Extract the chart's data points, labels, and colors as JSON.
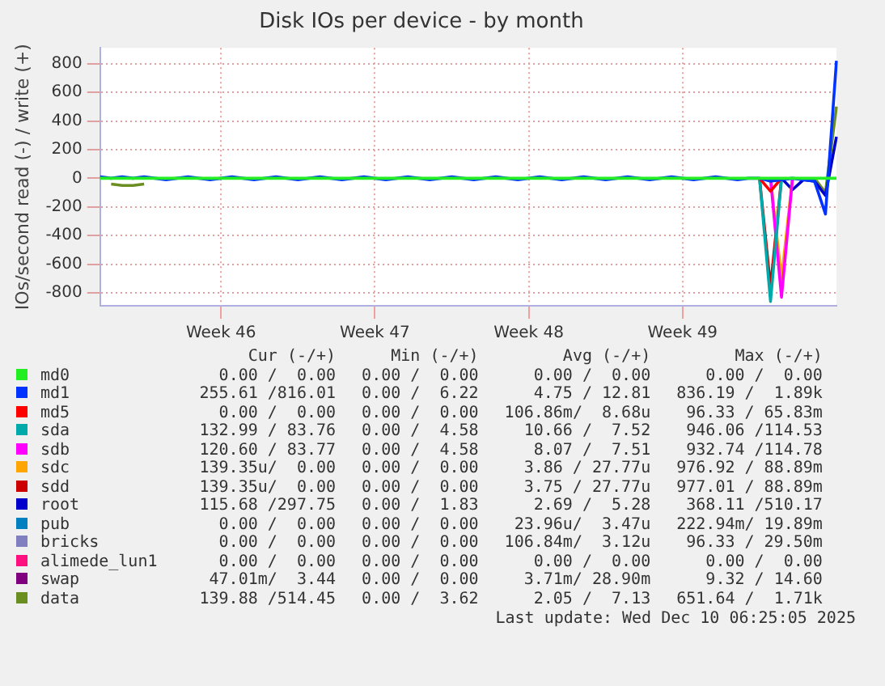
{
  "chart_data": {
    "type": "line",
    "title": "Disk IOs per device - by month",
    "ylabel": "IOs/second read (-) / write (+)",
    "categories": [
      null,
      null,
      null,
      null,
      null,
      null,
      null,
      null,
      null,
      null,
      null,
      "Week 46",
      null,
      null,
      null,
      null,
      null,
      null,
      null,
      null,
      null,
      null,
      null,
      null,
      null,
      "Week 47",
      null,
      null,
      null,
      null,
      null,
      null,
      null,
      null,
      null,
      null,
      null,
      null,
      null,
      "Week 48",
      null,
      null,
      null,
      null,
      null,
      null,
      null,
      null,
      null,
      null,
      null,
      null,
      null,
      "Week 49",
      null,
      null,
      null,
      null,
      null,
      null,
      null,
      null,
      null,
      null,
      null,
      null,
      null,
      null
    ],
    "ylim": [
      -890,
      910
    ],
    "yticks": [
      -800,
      -600,
      -400,
      -200,
      0,
      200,
      400,
      600,
      800
    ],
    "grid": true,
    "legend": "bottom",
    "marker": "none",
    "line_style": "solid",
    "series": [
      {
        "name": "md0",
        "color": "#22ee22",
        "values": [
          0,
          0,
          0,
          0,
          0,
          0,
          0,
          0,
          0,
          0,
          0,
          0,
          0,
          0,
          0,
          0,
          0,
          0,
          0,
          0,
          0,
          0,
          0,
          0,
          0,
          0,
          0,
          0,
          0,
          0,
          0,
          0,
          0,
          0,
          0,
          0,
          0,
          0,
          0,
          0,
          0,
          0,
          0,
          0,
          0,
          0,
          0,
          0,
          0,
          0,
          0,
          0,
          0,
          0,
          0,
          0,
          0,
          0,
          0,
          0,
          0,
          0,
          0,
          0,
          0,
          0,
          0,
          0
        ]
      },
      {
        "name": "md1",
        "color": "#0033ff",
        "values": [
          10,
          0,
          10,
          0,
          10,
          0,
          -10,
          0,
          10,
          0,
          -10,
          0,
          10,
          0,
          -10,
          0,
          10,
          0,
          -10,
          0,
          10,
          0,
          -10,
          0,
          10,
          0,
          -10,
          0,
          10,
          0,
          -10,
          0,
          10,
          0,
          -10,
          0,
          10,
          0,
          -10,
          0,
          10,
          0,
          -10,
          0,
          10,
          0,
          -10,
          0,
          10,
          0,
          -10,
          0,
          10,
          0,
          -10,
          0,
          10,
          0,
          -10,
          0,
          0,
          -20,
          -10,
          0,
          -10,
          -20,
          -250,
          820
        ]
      },
      {
        "name": "md5",
        "color": "#ff0000",
        "values": [
          null,
          null,
          null,
          null,
          null,
          null,
          null,
          null,
          null,
          null,
          null,
          null,
          null,
          null,
          null,
          null,
          null,
          null,
          null,
          null,
          null,
          null,
          null,
          null,
          null,
          null,
          null,
          null,
          null,
          null,
          null,
          null,
          null,
          null,
          null,
          null,
          null,
          null,
          null,
          null,
          null,
          null,
          null,
          null,
          null,
          null,
          null,
          null,
          null,
          null,
          null,
          null,
          null,
          null,
          null,
          null,
          null,
          null,
          null,
          null,
          0,
          -90,
          0,
          null,
          null,
          null,
          null,
          null
        ]
      },
      {
        "name": "sda",
        "color": "#00aaaa",
        "values": [
          null,
          null,
          null,
          null,
          null,
          null,
          null,
          null,
          null,
          null,
          null,
          null,
          null,
          null,
          null,
          null,
          null,
          null,
          null,
          null,
          null,
          null,
          null,
          null,
          null,
          null,
          null,
          null,
          null,
          null,
          null,
          null,
          null,
          null,
          null,
          null,
          null,
          null,
          null,
          null,
          null,
          null,
          null,
          null,
          null,
          null,
          null,
          null,
          null,
          null,
          null,
          null,
          null,
          null,
          null,
          null,
          null,
          null,
          null,
          null,
          0,
          -860,
          0,
          null,
          null,
          null,
          null,
          null
        ]
      },
      {
        "name": "sdb",
        "color": "#ff00ff",
        "values": [
          null,
          null,
          null,
          null,
          null,
          null,
          null,
          null,
          null,
          null,
          null,
          null,
          null,
          null,
          null,
          null,
          null,
          null,
          null,
          null,
          null,
          null,
          null,
          null,
          null,
          null,
          null,
          null,
          null,
          null,
          null,
          null,
          null,
          null,
          null,
          null,
          null,
          null,
          null,
          null,
          null,
          null,
          null,
          null,
          null,
          null,
          null,
          null,
          null,
          null,
          null,
          null,
          null,
          null,
          null,
          null,
          null,
          null,
          null,
          null,
          null,
          0,
          -830,
          0,
          null,
          null,
          null,
          null
        ]
      },
      {
        "name": "sdc",
        "color": "#ffa500",
        "values": [
          null,
          null,
          null,
          null,
          null,
          null,
          null,
          null,
          null,
          null,
          null,
          null,
          null,
          null,
          null,
          null,
          null,
          null,
          null,
          null,
          null,
          null,
          null,
          null,
          null,
          null,
          null,
          null,
          null,
          null,
          null,
          null,
          null,
          null,
          null,
          null,
          null,
          null,
          null,
          null,
          null,
          null,
          null,
          null,
          null,
          null,
          null,
          null,
          null,
          null,
          null,
          null,
          null,
          null,
          null,
          null,
          null,
          null,
          null,
          null,
          null,
          0,
          -700,
          0,
          null,
          null,
          null,
          null
        ]
      },
      {
        "name": "sdd",
        "color": "#cc0000",
        "values": [
          null,
          null,
          null,
          null,
          null,
          null,
          null,
          null,
          null,
          null,
          null,
          null,
          null,
          null,
          null,
          null,
          null,
          null,
          null,
          null,
          null,
          null,
          null,
          null,
          null,
          null,
          null,
          null,
          null,
          null,
          null,
          null,
          null,
          null,
          null,
          null,
          null,
          null,
          null,
          null,
          null,
          null,
          null,
          null,
          null,
          null,
          null,
          null,
          null,
          null,
          null,
          null,
          null,
          null,
          null,
          null,
          null,
          null,
          null,
          null,
          0,
          -760,
          0,
          null,
          null,
          null,
          null,
          null
        ]
      },
      {
        "name": "root",
        "color": "#0000cc",
        "values": [
          null,
          null,
          null,
          null,
          null,
          null,
          null,
          null,
          null,
          null,
          null,
          null,
          null,
          null,
          null,
          null,
          null,
          null,
          null,
          null,
          null,
          null,
          null,
          null,
          null,
          null,
          null,
          null,
          null,
          null,
          null,
          null,
          null,
          null,
          null,
          null,
          null,
          null,
          null,
          null,
          null,
          null,
          null,
          null,
          null,
          null,
          null,
          null,
          null,
          null,
          null,
          null,
          null,
          null,
          null,
          null,
          null,
          null,
          null,
          null,
          null,
          null,
          0,
          -80,
          -10,
          -20,
          -120,
          290
        ]
      },
      {
        "name": "pub",
        "color": "#0080c0",
        "values": [
          null,
          null,
          null,
          null,
          null,
          null,
          null,
          null,
          null,
          null,
          null,
          null,
          null,
          null,
          null,
          null,
          null,
          null,
          null,
          null,
          null,
          null,
          null,
          null,
          null,
          null,
          null,
          null,
          null,
          null,
          null,
          null,
          null,
          null,
          null,
          null,
          null,
          null,
          null,
          null,
          null,
          null,
          null,
          null,
          null,
          null,
          null,
          null,
          null,
          null,
          null,
          null,
          null,
          null,
          null,
          null,
          null,
          null,
          null,
          null,
          null,
          null,
          null,
          null,
          null,
          null,
          null,
          null
        ]
      },
      {
        "name": "bricks",
        "color": "#8080c0",
        "values": [
          null,
          null,
          null,
          null,
          null,
          null,
          null,
          null,
          null,
          null,
          null,
          null,
          null,
          null,
          null,
          null,
          null,
          null,
          null,
          null,
          null,
          null,
          null,
          null,
          null,
          null,
          null,
          null,
          null,
          null,
          null,
          null,
          null,
          null,
          null,
          null,
          null,
          null,
          null,
          null,
          null,
          null,
          null,
          null,
          null,
          null,
          null,
          null,
          null,
          null,
          null,
          null,
          null,
          null,
          null,
          null,
          null,
          null,
          null,
          null,
          null,
          null,
          null,
          null,
          null,
          null,
          null,
          null
        ]
      },
      {
        "name": "alimede_lun1",
        "color": "#ff1080",
        "values": [
          null,
          null,
          null,
          null,
          null,
          null,
          null,
          null,
          null,
          null,
          null,
          null,
          null,
          null,
          null,
          null,
          null,
          null,
          null,
          null,
          null,
          null,
          null,
          null,
          null,
          null,
          null,
          null,
          null,
          null,
          null,
          null,
          null,
          null,
          null,
          null,
          null,
          null,
          null,
          null,
          null,
          null,
          null,
          null,
          null,
          null,
          null,
          null,
          null,
          null,
          null,
          null,
          null,
          null,
          null,
          null,
          null,
          null,
          null,
          null,
          null,
          null,
          null,
          null,
          null,
          null,
          null,
          null
        ]
      },
      {
        "name": "swap",
        "color": "#800080",
        "values": [
          null,
          null,
          null,
          null,
          null,
          null,
          null,
          null,
          null,
          null,
          null,
          null,
          null,
          null,
          null,
          null,
          null,
          null,
          null,
          null,
          null,
          null,
          null,
          null,
          null,
          null,
          null,
          null,
          null,
          null,
          null,
          null,
          null,
          null,
          null,
          null,
          null,
          null,
          null,
          null,
          null,
          null,
          null,
          null,
          null,
          null,
          null,
          null,
          null,
          null,
          null,
          null,
          null,
          null,
          null,
          null,
          null,
          null,
          null,
          null,
          null,
          null,
          null,
          null,
          null,
          null,
          null,
          null
        ]
      },
      {
        "name": "data",
        "color": "#6b8e23",
        "values": [
          null,
          -40,
          -50,
          -50,
          -40,
          null,
          null,
          null,
          null,
          null,
          null,
          null,
          null,
          null,
          null,
          null,
          null,
          null,
          null,
          null,
          null,
          null,
          null,
          null,
          null,
          null,
          null,
          null,
          null,
          null,
          null,
          null,
          null,
          null,
          null,
          null,
          null,
          null,
          null,
          null,
          null,
          null,
          null,
          null,
          null,
          null,
          null,
          null,
          null,
          null,
          null,
          null,
          null,
          null,
          null,
          null,
          null,
          null,
          null,
          null,
          null,
          null,
          null,
          null,
          null,
          0,
          -100,
          500
        ]
      }
    ],
    "annotations": [
      "Cur (-/+)",
      "Min (-/+)",
      "Avg (-/+)",
      "Max (-/+)",
      "0.00 /  0.00",
      "0.00 /  0.00",
      "0.00 /  0.00",
      "0.00 /  0.00",
      "255.61 /816.01",
      "0.00 /  6.22",
      "4.75 / 12.81",
      "836.19 /  1.89k",
      "0.00 /  0.00",
      "0.00 /  0.00",
      "106.86m/  8.68u",
      "96.33 / 65.83m",
      "132.99 / 83.76",
      "0.00 /  4.58",
      "10.66 /  7.52",
      "946.06 /114.53",
      "120.60 / 83.77",
      "0.00 /  4.58",
      "8.07 /  7.51",
      "932.74 /114.78",
      "139.35u/  0.00",
      "0.00 /  0.00",
      "3.86 / 27.77u",
      "976.92 / 88.89m",
      "139.35u/  0.00",
      "0.00 /  0.00",
      "3.75 / 27.77u",
      "977.01 / 88.89m",
      "115.68 /297.75",
      "0.00 /  1.83",
      "2.69 /  5.28",
      "368.11 /510.17",
      "0.00 /  0.00",
      "0.00 /  0.00",
      "23.96u/  3.47u",
      "222.94m/ 19.89m",
      "0.00 /  0.00",
      "0.00 /  0.00",
      "106.84m/  3.12u",
      "96.33 / 29.50m",
      "0.00 /  0.00",
      "0.00 /  0.00",
      "0.00 /  0.00",
      "0.00 /  0.00",
      "47.01m/  3.44",
      "0.00 /  0.00",
      "3.71m/ 28.90m",
      "9.32 / 14.60",
      "139.88 /514.45",
      "0.00 /  3.62",
      "2.05 /  7.13",
      "651.64 /  1.71k",
      "Last update: Wed Dec 10 06:25:05 2025"
    ]
  }
}
